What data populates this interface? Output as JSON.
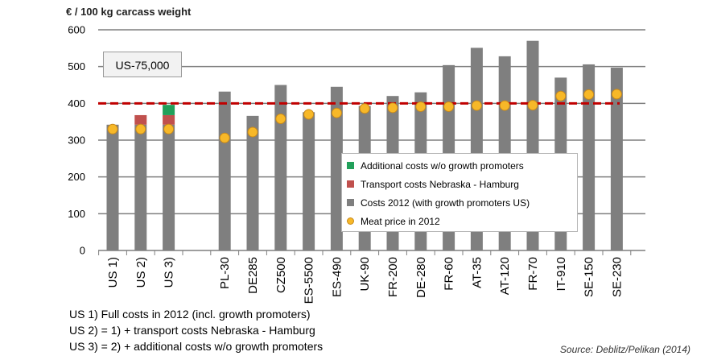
{
  "chart_data": {
    "type": "bar",
    "title": "",
    "ylabel": "€ / 100 kg carcass weight",
    "xlabel": "",
    "ylim": [
      0,
      600
    ],
    "yticks": [
      0,
      100,
      200,
      300,
      400,
      500,
      600
    ],
    "categories": [
      "US 1)",
      "US 2)",
      "US 3)",
      "PL-30",
      "DE285",
      "CZ500",
      "ES-5500",
      "ES-490",
      "UK-90",
      "FR-200",
      "DE-280",
      "FR-60",
      "AT-35",
      "AT-120",
      "FR-70",
      "IT-910",
      "SE-150",
      "SE-230"
    ],
    "series": [
      {
        "name": "Costs 2012 (with growth promoters US)",
        "color": "#7f7f7f",
        "values": [
          342,
          342,
          342,
          432,
          366,
          450,
          376,
          445,
          393,
          420,
          430,
          504,
          551,
          528,
          570,
          470,
          506,
          497
        ]
      },
      {
        "name": "Transport costs Nebraska - Hamburg",
        "color": "#c0504d",
        "values": [
          0,
          26,
          26,
          0,
          0,
          0,
          0,
          0,
          0,
          0,
          0,
          0,
          0,
          0,
          0,
          0,
          0,
          0
        ]
      },
      {
        "name": "Additional costs w/o growth promoters",
        "color": "#21a05a",
        "values": [
          0,
          0,
          28,
          0,
          0,
          0,
          0,
          0,
          0,
          0,
          0,
          0,
          0,
          0,
          0,
          0,
          0,
          0
        ]
      },
      {
        "name": "Meat price in 2012",
        "type": "scatter",
        "color": "#f7b828",
        "values": [
          330,
          330,
          330,
          306,
          322,
          358,
          370,
          374,
          386,
          388,
          391,
          391,
          394,
          394,
          395,
          420,
          424,
          425
        ]
      }
    ],
    "reference_line": {
      "value": 400,
      "color": "#c00000",
      "style": "dashed"
    },
    "annotation": "US-75,000",
    "legend": {
      "position": "center-right",
      "entries": [
        {
          "label": "Additional costs w/o growth promoters",
          "color": "#21a05a",
          "marker": "square"
        },
        {
          "label": "Transport costs Nebraska - Hamburg",
          "color": "#c0504d",
          "marker": "square"
        },
        {
          "label": "Costs 2012 (with growth promoters US)",
          "color": "#7f7f7f",
          "marker": "square"
        },
        {
          "label": "Meat price in 2012",
          "color": "#f7b828",
          "marker": "circle"
        }
      ]
    },
    "notes": [
      "US 1) Full costs in 2012 (incl. growth promoters)",
      "US 2) = 1) + transport costs Nebraska - Hamburg",
      "US 3) = 2) + additional costs w/o growth promoters"
    ],
    "source": "Source: Deblitz/Pelikan (2014)"
  }
}
